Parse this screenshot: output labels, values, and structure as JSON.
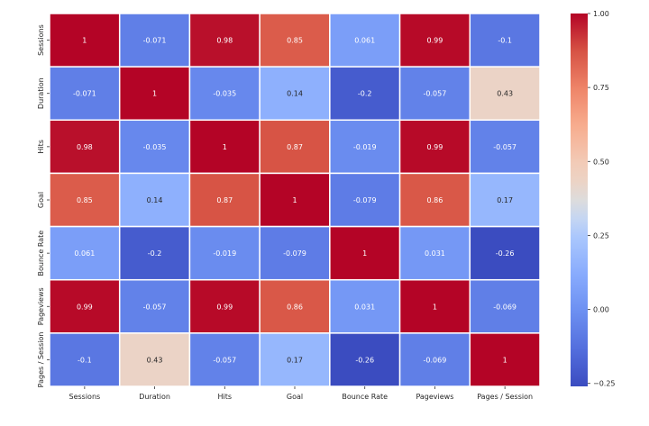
{
  "chart_data": {
    "type": "heatmap",
    "title": "",
    "xlabel": "",
    "ylabel": "",
    "x_labels": [
      "Sessions",
      "Duration",
      "Hits",
      "Goal",
      "Bounce Rate",
      "Pageviews",
      "Pages / Session"
    ],
    "y_labels": [
      "Sessions",
      "Duration",
      "Hits",
      "Goal",
      "Bounce Rate",
      "Pageviews",
      "Pages / Session"
    ],
    "values": [
      [
        1,
        -0.071,
        0.98,
        0.85,
        0.061,
        0.99,
        -0.1
      ],
      [
        -0.071,
        1,
        -0.035,
        0.14,
        -0.2,
        -0.057,
        0.43
      ],
      [
        0.98,
        -0.035,
        1,
        0.87,
        -0.019,
        0.99,
        -0.057
      ],
      [
        0.85,
        0.14,
        0.87,
        1,
        -0.079,
        0.86,
        0.17
      ],
      [
        0.061,
        -0.2,
        -0.019,
        -0.079,
        1,
        0.031,
        -0.26
      ],
      [
        0.99,
        -0.057,
        0.99,
        0.86,
        0.031,
        1,
        -0.069
      ],
      [
        -0.1,
        0.43,
        -0.057,
        0.17,
        -0.26,
        -0.069,
        1
      ]
    ],
    "annotations": [
      [
        "1",
        "-0.071",
        "0.98",
        "0.85",
        "0.061",
        "0.99",
        "-0.1"
      ],
      [
        "-0.071",
        "1",
        "-0.035",
        "0.14",
        "-0.2",
        "-0.057",
        "0.43"
      ],
      [
        "0.98",
        "-0.035",
        "1",
        "0.87",
        "-0.019",
        "0.99",
        "-0.057"
      ],
      [
        "0.85",
        "0.14",
        "0.87",
        "1",
        "-0.079",
        "0.86",
        "0.17"
      ],
      [
        "0.061",
        "-0.2",
        "-0.019",
        "-0.079",
        "1",
        "0.031",
        "-0.26"
      ],
      [
        "0.99",
        "-0.057",
        "0.99",
        "0.86",
        "0.031",
        "1",
        "-0.069"
      ],
      [
        "-0.1",
        "0.43",
        "-0.057",
        "0.17",
        "-0.26",
        "-0.069",
        "1"
      ]
    ],
    "colormap": "coolwarm",
    "color_range": [
      -0.26,
      1.0
    ],
    "colorbar": {
      "ticks": [
        -0.25,
        0.0,
        0.25,
        0.5,
        0.75,
        1.0
      ],
      "tick_labels": [
        "−0.25",
        "0.00",
        "0.25",
        "0.50",
        "0.75",
        "1.00"
      ]
    },
    "grid_line_color": "#ffffff"
  }
}
